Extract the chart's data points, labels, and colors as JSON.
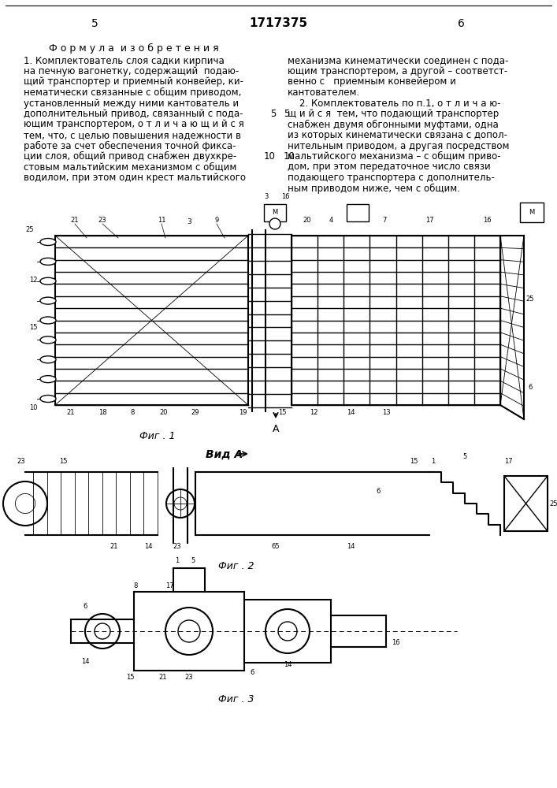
{
  "page_left": "5",
  "page_center": "1717375",
  "page_right": "6",
  "title": "Ф о р м у л а  и з о б р е т е н и я",
  "col1_line1": "1. Комплектователь слоя садки кирпича",
  "col1_line2": "на печную вагонетку, содержащий  подаю-",
  "col1_line3": "щий транспортер и приемный конвейер, ки-",
  "col1_line4": "нематически связанные с общим приводом,",
  "col1_line5": "установленный между ними кантователь и",
  "col1_line6": "дополнительный привод, связанный с пода-",
  "col1_line7": "ющим транспортером, о т л и ч а ю щ и й с я",
  "col1_line8": "тем, что, с целью повышения надежности в",
  "col1_line9": "работе за счет обеспечения точной фикса-",
  "col1_line10": "ции слоя, общий привод снабжен двухкре-",
  "col1_line11": "стовым мальтийским механизмом с общим",
  "col1_line12": "водилом, при этом один крест мальтийского",
  "col2_line1": "механизма кинематически соединен с пода-",
  "col2_line2": "ющим транспортером, а другой – соответст-",
  "col2_line3": "венно с   приемным конвейером и",
  "col2_line4": "кантователем.",
  "col2_line5": "    2. Комплектователь по п.1, о т л и ч а ю-",
  "col2_line6": "щ и й с я  тем, что подающий транспортер",
  "col2_line7": "снабжен двумя обгонными муфтами, одна",
  "col2_line8": "из которых кинематически связана с допол-",
  "col2_line9": "нительным приводом, а другая посредством",
  "col2_line10": "мальтийского механизма – с общим приво-",
  "col2_line11": "дом, при этом передаточное число связи",
  "col2_line12": "подающего транспортера с дополнитель-",
  "col2_line13": "ным приводом ниже, чем с общим.",
  "fig1_caption": "Фиг . 1",
  "fig2_caption": "Фиг . 2",
  "fig3_caption": "Фиг . 3",
  "vid_a": "Вид A",
  "bg_color": "#ffffff"
}
